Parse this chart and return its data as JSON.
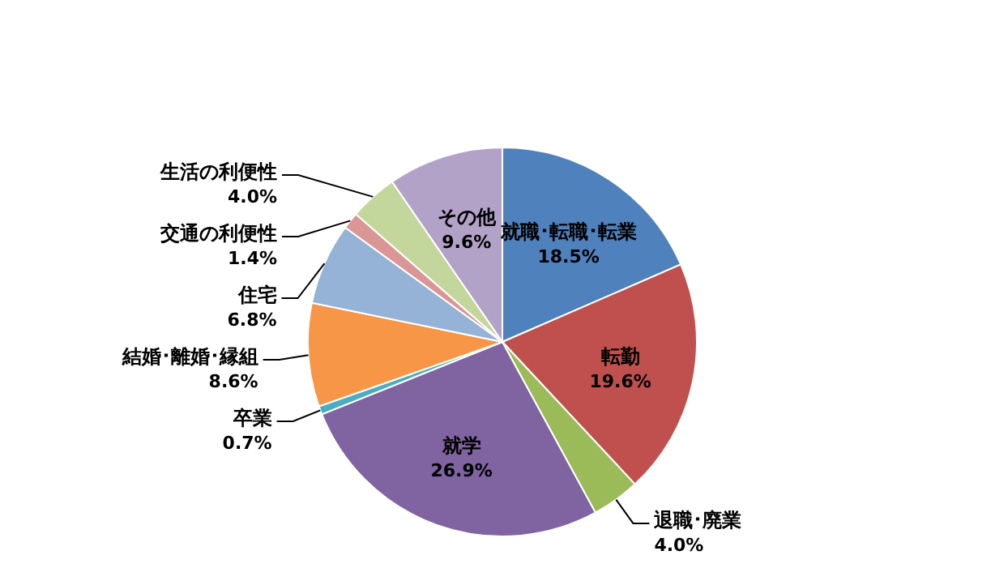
{
  "chart_data": {
    "type": "pie",
    "categories": [
      "就職･転職･転業",
      "転勤",
      "退職･廃業",
      "就学",
      "卒業",
      "結婚･離婚･縁組",
      "住宅",
      "交通の利便性",
      "生活の利便性",
      "その他"
    ],
    "values": [
      18.5,
      19.6,
      4.0,
      26.9,
      0.7,
      8.6,
      6.8,
      1.4,
      4.0,
      9.6
    ],
    "value_labels": [
      "18.5%",
      "19.6%",
      "4.0%",
      "26.9%",
      "0.7%",
      "8.6%",
      "6.8%",
      "1.4%",
      "4.0%",
      "9.6%"
    ],
    "colors": [
      "#4f81bd",
      "#c0504d",
      "#9bbb59",
      "#8064a2",
      "#4bacc6",
      "#f79646",
      "#95b3d7",
      "#d99694",
      "#c3d69b",
      "#b3a2c7"
    ]
  }
}
